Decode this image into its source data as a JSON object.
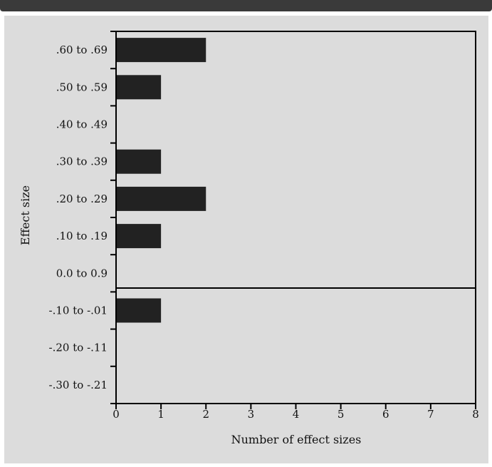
{
  "chart_data": {
    "type": "bar",
    "orientation": "horizontal",
    "categories": [
      ".60 to .69",
      ".50 to .59",
      ".40 to .49",
      ".30 to .39",
      ".20 to .29",
      ".10 to .19",
      "0.0 to 0.9",
      "-.10 to -.01",
      "-.20 to -.11",
      "-.30 to -.21"
    ],
    "values": [
      2,
      1,
      0,
      1,
      2,
      1,
      0,
      1,
      0,
      0
    ],
    "xlabel": "Number of effect sizes",
    "ylabel": "Effect size",
    "xlim": [
      0,
      8
    ],
    "xticks": [
      "0",
      "1",
      "2",
      "3",
      "4",
      "5",
      "6",
      "7",
      "8"
    ],
    "reference_line_between": [
      "0.0 to 0.9",
      "-.10 to -.01"
    ],
    "grid": false,
    "colors": {
      "bar": "#222222",
      "background": "#dcdcdc",
      "header": "#3a3a3a",
      "axis": "#000000"
    }
  }
}
